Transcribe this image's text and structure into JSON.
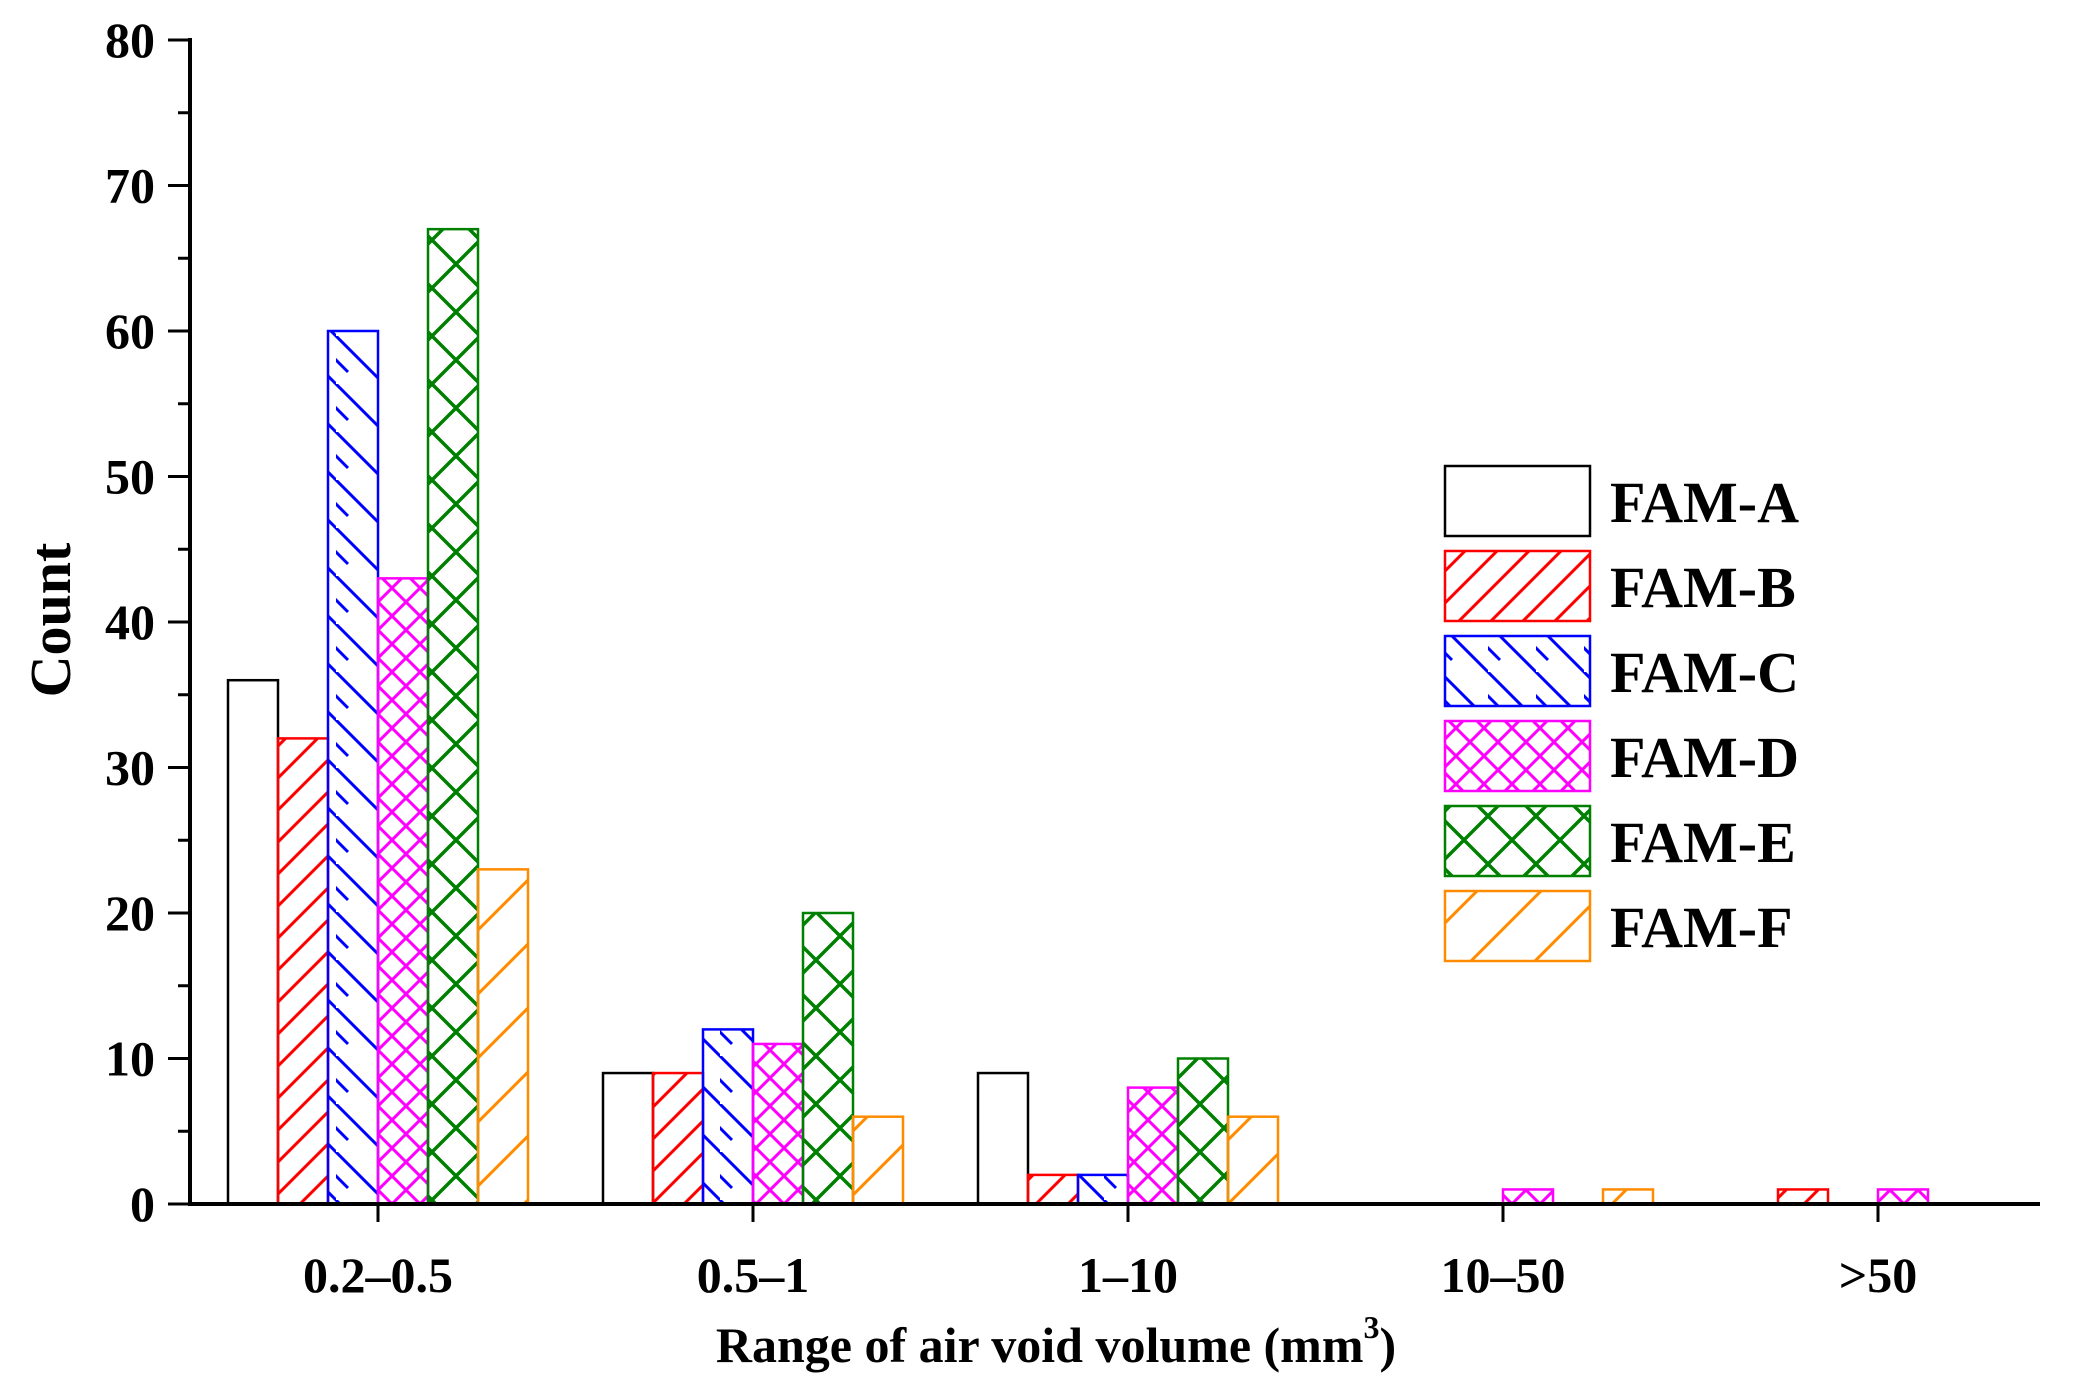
{
  "chart_data": {
    "type": "bar",
    "title": "",
    "xlabel_main": "Range of air void volume (mm",
    "xlabel_sup": "3",
    "xlabel_close": ")",
    "ylabel": "Count",
    "ylim": [
      0,
      80
    ],
    "yticks": [
      "0",
      "10",
      "20",
      "30",
      "40",
      "50",
      "60",
      "70",
      "80"
    ],
    "categories": [
      "0.2–0.5",
      "0.5–1",
      "1–10",
      "10–50",
      ">50"
    ],
    "legend_position": "right",
    "series": [
      {
        "name": "FAM-A",
        "color": "#000000",
        "pattern": "none",
        "values": [
          36,
          9,
          9,
          0,
          0
        ]
      },
      {
        "name": "FAM-B",
        "color": "#ff0000",
        "pattern": "slash",
        "values": [
          32,
          9,
          2,
          0,
          1
        ]
      },
      {
        "name": "FAM-C",
        "color": "#0000ff",
        "pattern": "back",
        "values": [
          60,
          12,
          2,
          0,
          0
        ]
      },
      {
        "name": "FAM-D",
        "color": "#ff00ff",
        "pattern": "cross",
        "values": [
          43,
          11,
          8,
          1,
          1
        ]
      },
      {
        "name": "FAM-E",
        "color": "#008000",
        "pattern": "cross2",
        "values": [
          67,
          20,
          10,
          0,
          0
        ]
      },
      {
        "name": "FAM-F",
        "color": "#ff8c00",
        "pattern": "slash2",
        "values": [
          23,
          6,
          6,
          1,
          0
        ]
      }
    ]
  }
}
